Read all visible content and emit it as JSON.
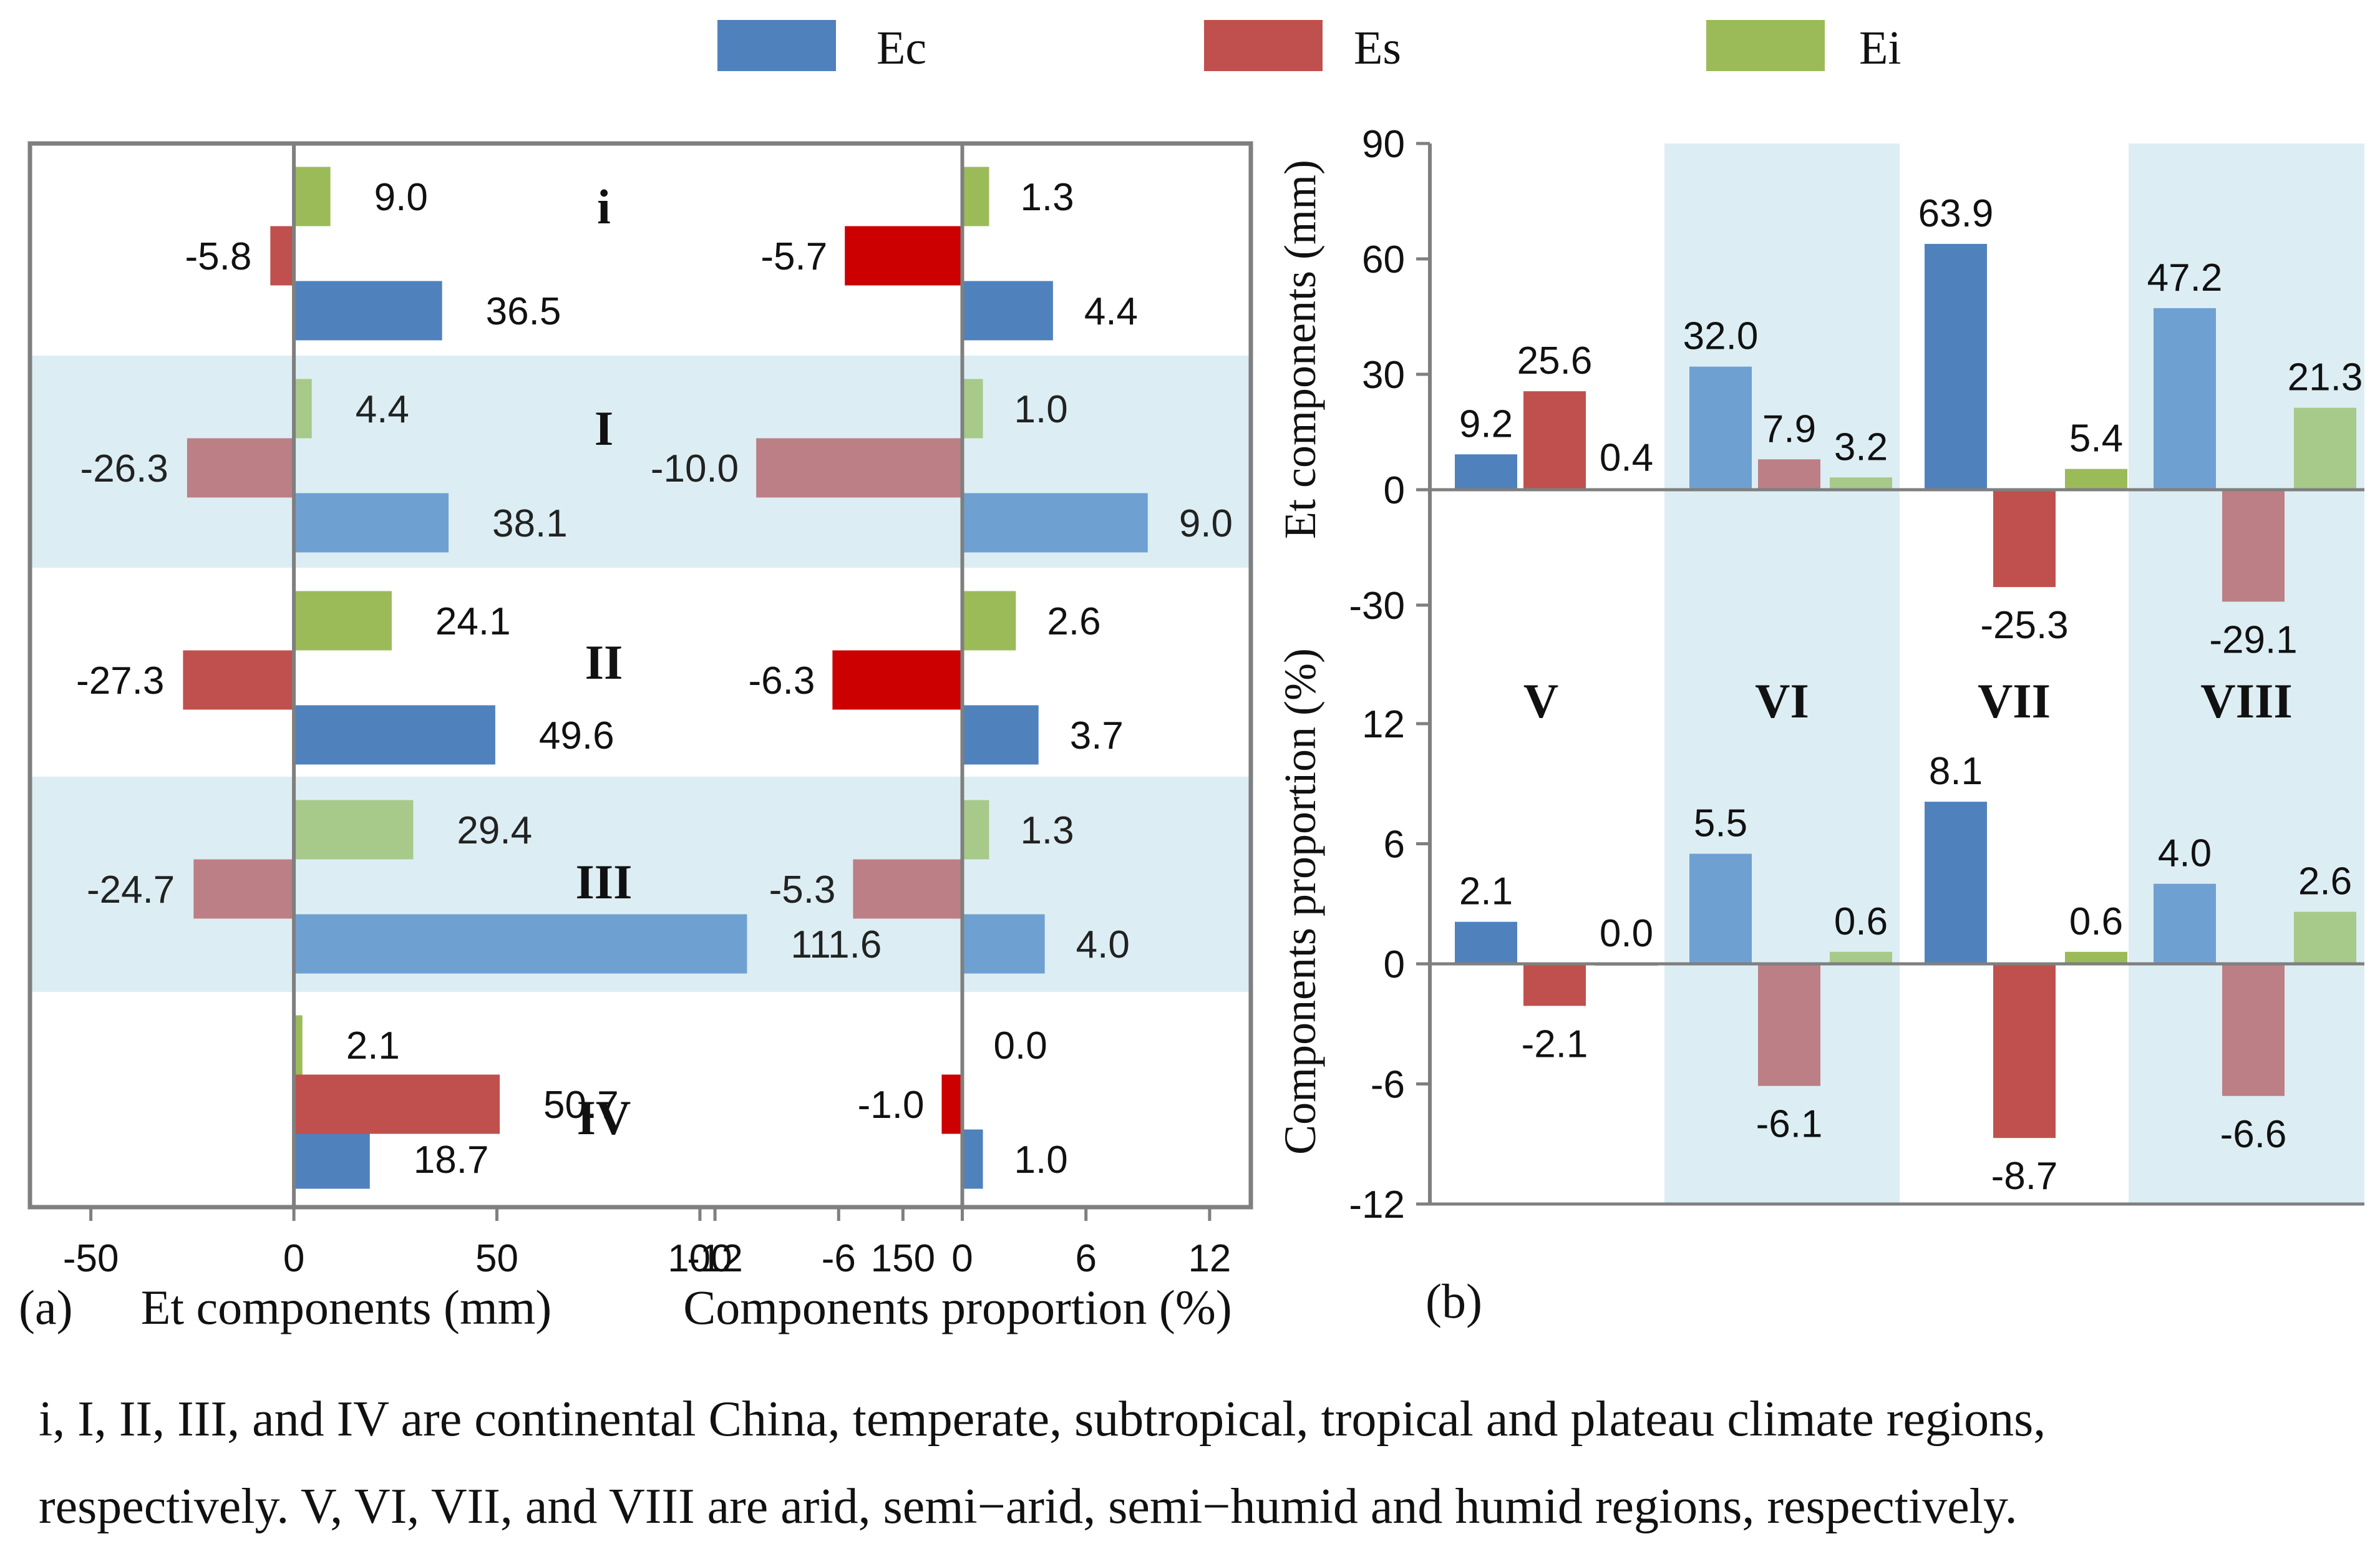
{
  "legend": [
    {
      "key": "Ec",
      "label": "Ec",
      "color": "#4F81BD"
    },
    {
      "key": "Es",
      "label": "Es",
      "color": "#C0504D"
    },
    {
      "key": "Ei",
      "label": "Ei",
      "color": "#9BBB59"
    }
  ],
  "colors": {
    "Ec": "#4F81BD",
    "Ec_light": "#6FA0D2",
    "Es": "#C0504D",
    "Es_strong": "#CC0000",
    "Es_light": "#BC7F86",
    "Ei": "#9BBB59",
    "Ei_light": "#A7C98A",
    "band": "#DCEEF3",
    "frame": "#7F7F7F"
  },
  "panel_labels": {
    "a": "(a)",
    "b": "(b)"
  },
  "caption": {
    "line1": "i, I, II, III, and IV are continental China, temperate, subtropical, tropical and plateau climate regions,",
    "line2": "respectively. V, VI, VII, and VIII are arid, semi−arid, semi−humid and humid regions, respectively."
  },
  "chart_data": [
    {
      "id": "a-mm",
      "type": "bar",
      "orientation": "horizontal",
      "xlabel": "Et components (mm)",
      "xlim": [
        -65,
        165
      ],
      "xticks": [
        -50,
        0,
        50,
        100,
        150
      ],
      "categories": [
        "i",
        "I",
        "II",
        "III",
        "IV"
      ],
      "shaded_categories": [
        "I",
        "III"
      ],
      "series": [
        {
          "name": "Ec",
          "values": [
            36.5,
            38.1,
            49.6,
            111.6,
            18.7
          ]
        },
        {
          "name": "Es",
          "values": [
            -5.8,
            -26.3,
            -27.3,
            -24.7,
            50.7
          ]
        },
        {
          "name": "Ei",
          "values": [
            9.0,
            4.4,
            24.1,
            29.4,
            2.1
          ]
        }
      ],
      "data_labels": {
        "Ec": [
          "36.5",
          "38.1",
          "49.6",
          "111.6",
          "18.7"
        ],
        "Es": [
          "-5.8",
          "-26.3",
          "-27.3",
          "-24.7",
          "50.7"
        ],
        "Ei": [
          "9.0",
          "4.4",
          "24.1",
          "29.4",
          "2.1"
        ]
      }
    },
    {
      "id": "a-pct",
      "type": "bar",
      "orientation": "horizontal",
      "xlabel": "Components proportion (%)",
      "xlim": [
        -14,
        14
      ],
      "xticks": [
        -12,
        -6,
        0,
        6,
        12
      ],
      "categories": [
        "i",
        "I",
        "II",
        "III",
        "IV"
      ],
      "shaded_categories": [
        "I",
        "III"
      ],
      "series": [
        {
          "name": "Ec",
          "values": [
            4.4,
            9.0,
            3.7,
            4.0,
            1.0
          ]
        },
        {
          "name": "Es",
          "values": [
            -5.7,
            -10.0,
            -6.3,
            -5.3,
            -1.0
          ]
        },
        {
          "name": "Ei",
          "values": [
            1.3,
            1.0,
            2.6,
            1.3,
            0.0
          ]
        }
      ],
      "data_labels": {
        "Ec": [
          "4.4",
          "9.0",
          "3.7",
          "4.0",
          "1.0"
        ],
        "Es": [
          "-5.7",
          "-10.0",
          "-6.3",
          "-5.3",
          "-1.0"
        ],
        "Ei": [
          "1.3",
          "1.0",
          "2.6",
          "1.3",
          "0.0"
        ]
      }
    },
    {
      "id": "b-mm",
      "type": "bar",
      "orientation": "vertical",
      "ylabel": "Et components (mm)",
      "ylim": [
        -45,
        90
      ],
      "yticks": [
        -30,
        0,
        30,
        60,
        90
      ],
      "categories": [
        "V",
        "VI",
        "VII",
        "VIII"
      ],
      "shaded_categories": [
        "VI",
        "VIII"
      ],
      "series": [
        {
          "name": "Ec",
          "values": [
            9.2,
            32.0,
            63.9,
            47.2
          ]
        },
        {
          "name": "Es",
          "values": [
            25.6,
            7.9,
            -25.3,
            -29.1
          ]
        },
        {
          "name": "Ei",
          "values": [
            0.4,
            3.2,
            5.4,
            21.3
          ]
        }
      ],
      "data_labels": {
        "Ec": [
          "9.2",
          "32.0",
          "63.9",
          "47.2"
        ],
        "Es": [
          "25.6",
          "7.9",
          "-25.3",
          "-29.1"
        ],
        "Ei": [
          "0.4",
          "3.2",
          "5.4",
          "21.3"
        ]
      }
    },
    {
      "id": "b-pct",
      "type": "bar",
      "orientation": "vertical",
      "ylabel": "Components proportion (%)",
      "ylim": [
        -12,
        18
      ],
      "yticks": [
        -12,
        -6,
        0,
        6,
        12
      ],
      "categories": [
        "V",
        "VI",
        "VII",
        "VIII"
      ],
      "shaded_categories": [
        "VI",
        "VIII"
      ],
      "series": [
        {
          "name": "Ec",
          "values": [
            2.1,
            5.5,
            8.1,
            4.0
          ]
        },
        {
          "name": "Es",
          "values": [
            -2.1,
            -6.1,
            -8.7,
            -6.6
          ]
        },
        {
          "name": "Ei",
          "values": [
            0.0,
            0.6,
            0.6,
            2.6
          ]
        }
      ],
      "data_labels": {
        "Ec": [
          "2.1",
          "5.5",
          "8.1",
          "4.0"
        ],
        "Es": [
          "-2.1",
          "-6.1",
          "-8.7",
          "-6.6"
        ],
        "Ei": [
          "0.0",
          "0.6",
          "0.6",
          "2.6"
        ]
      }
    }
  ]
}
